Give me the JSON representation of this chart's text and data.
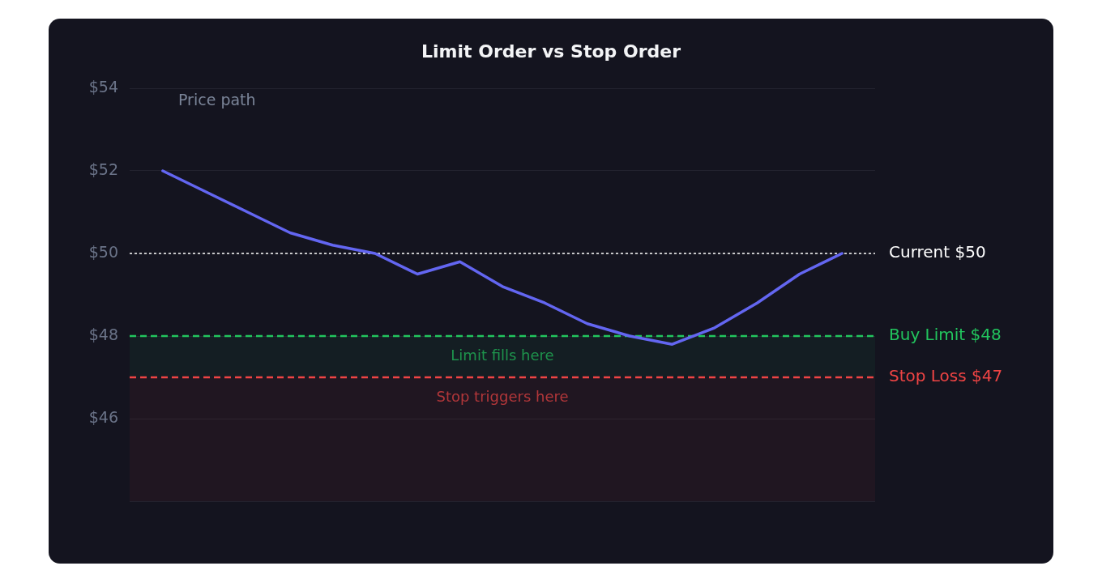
{
  "chart_data": {
    "type": "line",
    "title": "Limit Order vs Stop Order",
    "categories": [
      null,
      null,
      null,
      null,
      null,
      null,
      null,
      null,
      null,
      null,
      null,
      null,
      null,
      null,
      null,
      null,
      null
    ],
    "series": [
      {
        "color": "#6366f1",
        "values": [
          52,
          51.5,
          51.0,
          50.5,
          50.2,
          50,
          49.5,
          49.8,
          49.2,
          48.8,
          48.3,
          48.0,
          47.8,
          48.2,
          48.8,
          49.5,
          50
        ]
      }
    ],
    "ylim": [
      44,
      54
    ],
    "yticks": [
      {
        "value": 44,
        "label": null
      },
      {
        "value": 46,
        "label": "$46"
      },
      {
        "value": 48,
        "label": "$48"
      },
      {
        "value": 50,
        "label": "$50"
      },
      {
        "value": 52,
        "label": "$52"
      },
      {
        "value": 54,
        "label": "$54"
      }
    ],
    "grid": "y",
    "marker": "none",
    "line_style": "solid",
    "legend": false,
    "tick_labels": "y",
    "ref_lines": [
      {
        "axis": "y",
        "value": 50,
        "label": "Current $50",
        "color": "#ffffff",
        "line_style": "dotted"
      },
      {
        "axis": "y",
        "value": 48,
        "label": "Buy Limit $48",
        "color": "#22c55e",
        "line_style": "dashed"
      },
      {
        "axis": "y",
        "value": 47,
        "label": "Stop Loss $47",
        "color": "#ef4444",
        "line_style": "dashed"
      }
    ],
    "bands": [
      {
        "axis": "y",
        "from": 47,
        "to": 48,
        "label": "Limit fills here",
        "color": "#22c55e"
      },
      {
        "axis": "y",
        "from": 44,
        "to": 47,
        "label": "Stop triggers here",
        "color": "#ef4444"
      }
    ],
    "annotations": [
      "Price path"
    ]
  }
}
